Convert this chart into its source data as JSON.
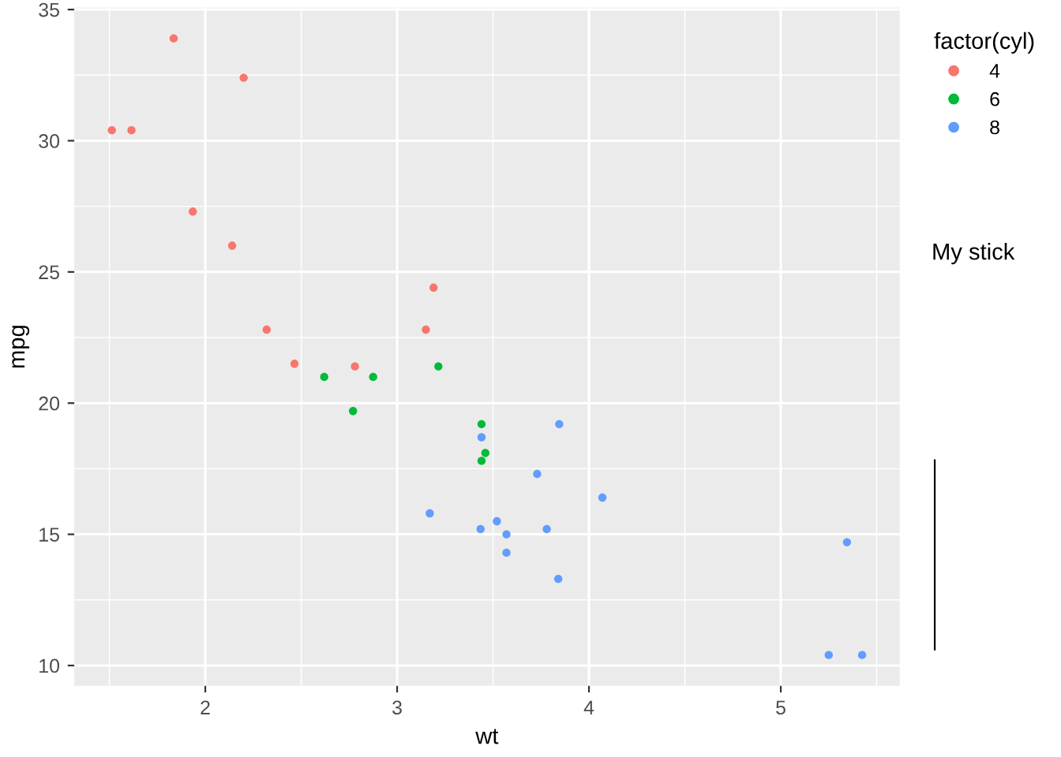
{
  "chart_data": {
    "type": "scatter",
    "xlabel": "wt",
    "ylabel": "mpg",
    "legend_title": "factor(cyl)",
    "legend": "right",
    "grid": true,
    "marker": "circle",
    "xlim": [
      1.317,
      5.62
    ],
    "ylim": [
      9.225,
      35.075
    ],
    "xticks": [
      2,
      3,
      4,
      5
    ],
    "yticks": [
      10,
      15,
      20,
      25,
      30,
      35
    ],
    "annotations": [
      "My stick"
    ],
    "series": [
      {
        "name": "4",
        "color": "#f8766d",
        "x": [
          2.32,
          3.19,
          3.15,
          2.2,
          1.615,
          1.835,
          2.465,
          1.935,
          2.14,
          1.513,
          2.78
        ],
        "values": [
          22.8,
          24.4,
          22.8,
          32.4,
          30.4,
          33.9,
          21.5,
          27.3,
          26.0,
          30.4,
          21.4
        ]
      },
      {
        "name": "6",
        "color": "#00ba38",
        "x": [
          2.62,
          2.875,
          3.215,
          3.46,
          3.44,
          3.44,
          2.77
        ],
        "values": [
          21.0,
          21.0,
          21.4,
          18.1,
          19.2,
          17.8,
          19.7
        ]
      },
      {
        "name": "8",
        "color": "#619cff",
        "x": [
          3.44,
          3.57,
          4.07,
          3.73,
          3.78,
          5.25,
          5.424,
          5.345,
          3.52,
          3.435,
          3.84,
          3.845,
          3.17,
          3.57
        ],
        "values": [
          18.7,
          14.3,
          16.4,
          17.3,
          15.2,
          10.4,
          10.4,
          14.7,
          15.5,
          15.2,
          13.3,
          19.2,
          15.8,
          15.0
        ]
      }
    ]
  }
}
